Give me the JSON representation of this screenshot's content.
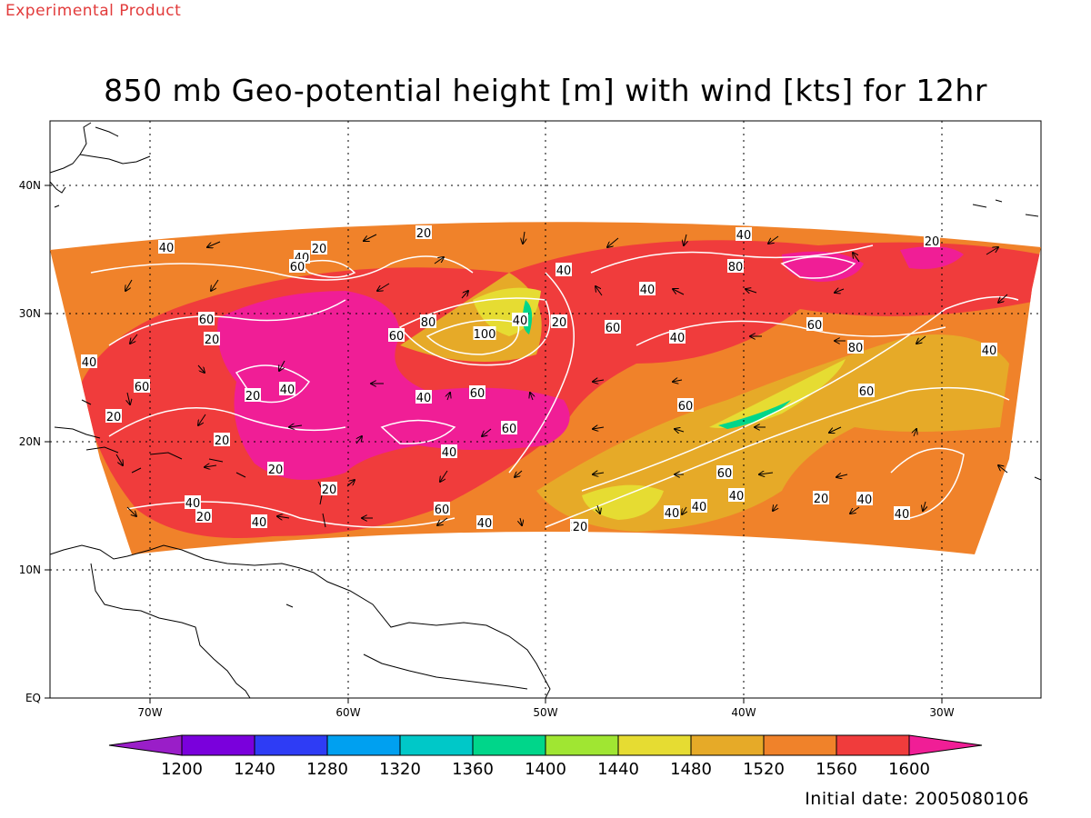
{
  "header": {
    "product_label": "Experimental Product"
  },
  "map": {
    "title": "850 mb Geo-potential height [m] with wind [kts] for 12hr",
    "lon_labels": [
      "70W",
      "60W",
      "50W",
      "40W",
      "30W"
    ],
    "lat_labels": [
      "40N",
      "30N",
      "20N",
      "10N",
      "EQ"
    ],
    "colorbar": {
      "ticks": [
        "1200",
        "1240",
        "1280",
        "1320",
        "1360",
        "1400",
        "1440",
        "1480",
        "1520",
        "1560",
        "1600"
      ],
      "colors": [
        "#9a1ec8",
        "#7a00dc",
        "#2e3cf5",
        "#00a0f0",
        "#00c8c8",
        "#00d68a",
        "#a0e632",
        "#e6dc32",
        "#e6aa28",
        "#f0822a",
        "#f03c3c",
        "#f01e96"
      ]
    },
    "shading_colors": {
      "h1600plus": "#f01e96",
      "h1560": "#f03c3c",
      "h1520": "#f0822a",
      "h1480": "#e6aa28",
      "h1440": "#e6dc32",
      "h1400": "#a0e632",
      "h1360": "#00d68a"
    },
    "contour_labels": [
      "40",
      "40",
      "20",
      "60",
      "60",
      "20",
      "40",
      "60",
      "20",
      "40",
      "20",
      "20",
      "20",
      "20",
      "40",
      "20",
      "40",
      "60",
      "80",
      "100",
      "40",
      "60",
      "40",
      "60",
      "40",
      "60",
      "20",
      "20",
      "40",
      "40",
      "40",
      "20",
      "40",
      "60",
      "80",
      "80",
      "60",
      "60",
      "60",
      "20",
      "40",
      "40",
      "40",
      "60",
      "40",
      "20",
      "40",
      "20",
      "40",
      "40"
    ],
    "initial_date": "Initial date: 2005080106"
  }
}
